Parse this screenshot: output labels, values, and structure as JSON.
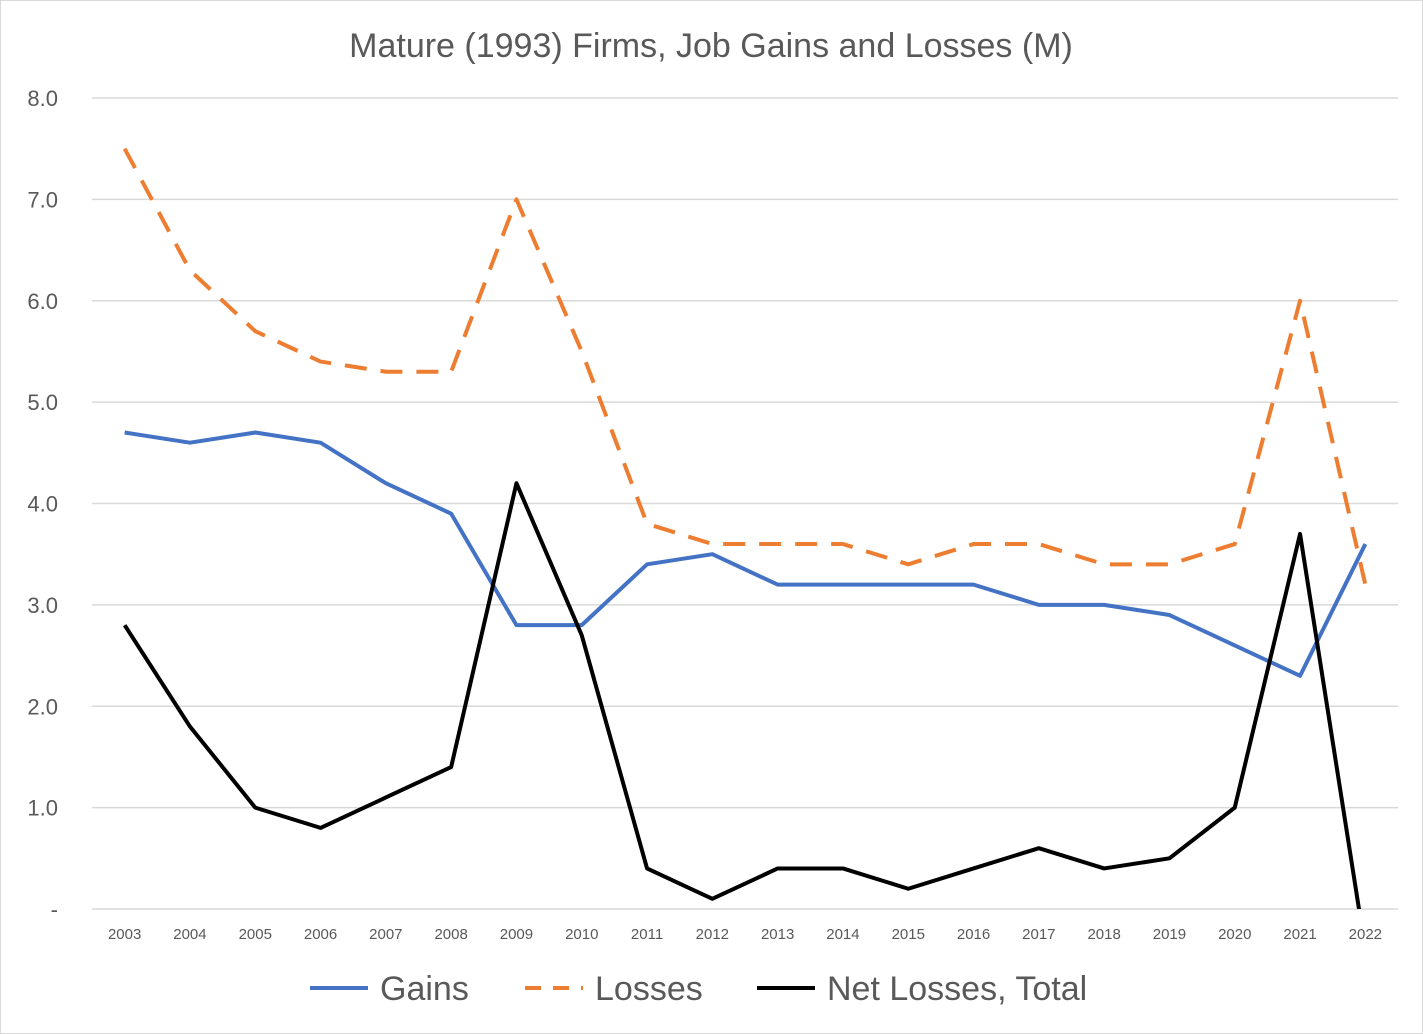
{
  "chart_data": {
    "type": "line",
    "title": "Mature (1993) Firms, Job Gains and Losses (M)",
    "xlabel": "",
    "ylabel": "",
    "categories": [
      "2003",
      "2004",
      "2005",
      "2006",
      "2007",
      "2008",
      "2009",
      "2010",
      "2011",
      "2012",
      "2013",
      "2014",
      "2015",
      "2016",
      "2017",
      "2018",
      "2019",
      "2020",
      "2021",
      "2022"
    ],
    "ylim": [
      0,
      8
    ],
    "yticks": [
      0,
      1,
      2,
      3,
      4,
      5,
      6,
      7,
      8
    ],
    "ytick_labels": [
      "-",
      "1.0",
      "2.0",
      "3.0",
      "4.0",
      "5.0",
      "6.0",
      "7.0",
      "8.0"
    ],
    "grid": true,
    "legend": "bottom",
    "series": [
      {
        "name": "Gains",
        "color": "#4472c4",
        "dash": "solid",
        "values": [
          4.7,
          4.6,
          4.7,
          4.6,
          4.2,
          3.9,
          2.8,
          2.8,
          3.4,
          3.5,
          3.2,
          3.2,
          3.2,
          3.2,
          3.0,
          3.0,
          2.9,
          2.6,
          2.3,
          3.6
        ]
      },
      {
        "name": "Losses",
        "color": "#ed7d31",
        "dash": "dashed",
        "values": [
          7.5,
          6.3,
          5.7,
          5.4,
          5.3,
          5.3,
          7.0,
          5.5,
          3.8,
          3.6,
          3.6,
          3.6,
          3.4,
          3.6,
          3.6,
          3.4,
          3.4,
          3.6,
          6.0,
          3.2
        ]
      },
      {
        "name": "Net Losses, Total",
        "color": "#000000",
        "dash": "solid",
        "values": [
          2.8,
          1.8,
          1.0,
          0.8,
          1.1,
          1.4,
          4.2,
          2.7,
          0.4,
          0.1,
          0.4,
          0.4,
          0.2,
          0.4,
          0.6,
          0.4,
          0.5,
          1.0,
          3.7,
          -0.4
        ]
      }
    ]
  }
}
